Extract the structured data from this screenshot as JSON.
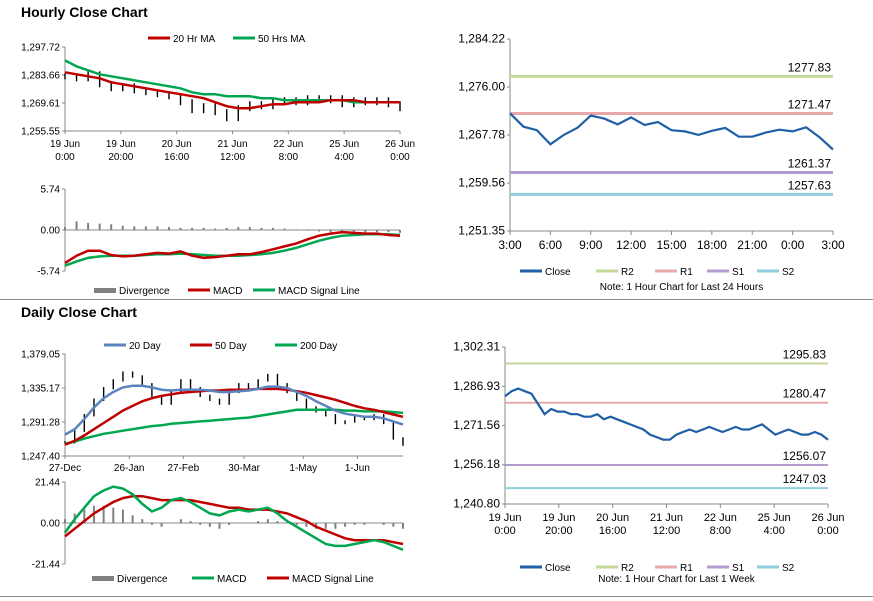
{
  "sections": {
    "hourly_title": "Hourly Close Chart",
    "daily_title": "Daily Close Chart"
  },
  "colors": {
    "price": "#000000",
    "ma_red": "#c00000",
    "ma_green": "#00a650",
    "ma_blue": "#5b84bf",
    "close": "#1f5fa6",
    "r2": "#c4d89b",
    "r1": "#e6a8a8",
    "s1": "#b29ccf",
    "s2": "#92cddc",
    "divergence": "#808080",
    "axis": "#888888",
    "grid_text": "#000000"
  },
  "chart_data": [
    {
      "id": "hourly_price",
      "type": "line",
      "title": "",
      "legend": [
        "20 Hr MA",
        "50 Hrs MA"
      ],
      "y_ticks": [
        "1,297.72",
        "1,283.66",
        "1,269.61",
        "1,255.55"
      ],
      "ylim": [
        1255.55,
        1297.72
      ],
      "x_tick_labels": [
        [
          "19 Jun",
          "0:00"
        ],
        [
          "19 Jun",
          "20:00"
        ],
        [
          "20 Jun",
          "16:00"
        ],
        [
          "21 Jun",
          "12:00"
        ],
        [
          "22 Jun",
          "8:00"
        ],
        [
          "25 Jun",
          "4:00"
        ],
        [
          "26 Jun",
          "0:00"
        ]
      ],
      "series": [
        {
          "name": "Close",
          "values": [
            1283,
            1282,
            1284,
            1279,
            1277,
            1278,
            1276,
            1275,
            1274,
            1273,
            1270,
            1266,
            1268,
            1265,
            1262,
            1267,
            1269,
            1268,
            1270,
            1271,
            1270,
            1272,
            1271,
            1272,
            1269,
            1271,
            1270,
            1271,
            1269,
            1267
          ]
        },
        {
          "name": "20 Hr MA",
          "values": [
            1285,
            1284,
            1283,
            1282,
            1280,
            1279,
            1278,
            1277,
            1276,
            1275,
            1274,
            1273,
            1272,
            1270,
            1268,
            1267,
            1267,
            1268,
            1269,
            1269,
            1270,
            1270,
            1270,
            1271,
            1271,
            1271,
            1270,
            1270,
            1270,
            1270
          ]
        },
        {
          "name": "50 Hrs MA",
          "values": [
            1291,
            1288,
            1286,
            1284,
            1283,
            1282,
            1281,
            1280,
            1279,
            1278,
            1277,
            1275,
            1274,
            1274,
            1273,
            1273,
            1273,
            1272,
            1272,
            1271,
            1271,
            1271,
            1271,
            1271,
            1271,
            1270,
            1270,
            1270,
            1270,
            1270
          ]
        }
      ]
    },
    {
      "id": "hourly_macd",
      "type": "line",
      "legend": [
        "Divergence",
        "MACD",
        "MACD Signal Line"
      ],
      "y_ticks": [
        "5.74",
        "0.00",
        "-5.74"
      ],
      "ylim": [
        -5.74,
        5.74
      ],
      "series": [
        {
          "name": "Divergence",
          "values": [
            0.4,
            1.2,
            1.0,
            0.9,
            0.8,
            0.6,
            0.5,
            0.5,
            0.5,
            0.4,
            0.3,
            0.3,
            0.3,
            0.2,
            0.3,
            0.4,
            0.4,
            0.3,
            0.3,
            0.2,
            0.1,
            -0.1,
            -0.2,
            -0.3,
            -0.3,
            -0.3,
            -0.4,
            -0.3,
            -0.3,
            -0.4
          ]
        },
        {
          "name": "MACD",
          "values": [
            -4.6,
            -3.6,
            -2.9,
            -2.9,
            -3.5,
            -3.7,
            -3.6,
            -3.4,
            -3.2,
            -3.3,
            -3.0,
            -3.6,
            -3.9,
            -3.8,
            -3.6,
            -3.4,
            -3.4,
            -3.1,
            -2.7,
            -2.3,
            -1.9,
            -1.3,
            -0.8,
            -0.5,
            -0.3,
            -0.4,
            -0.5,
            -0.5,
            -0.7,
            -0.8
          ]
        },
        {
          "name": "MACD Signal Line",
          "values": [
            -5.0,
            -4.4,
            -3.9,
            -3.7,
            -3.6,
            -3.6,
            -3.6,
            -3.5,
            -3.4,
            -3.4,
            -3.3,
            -3.4,
            -3.5,
            -3.6,
            -3.6,
            -3.6,
            -3.5,
            -3.4,
            -3.2,
            -2.9,
            -2.5,
            -2.0,
            -1.5,
            -1.1,
            -0.8,
            -0.7,
            -0.6,
            -0.6,
            -0.6,
            -0.7
          ]
        }
      ]
    },
    {
      "id": "hourly_levels",
      "type": "line",
      "legend": [
        "Close",
        "R2",
        "R1",
        "S1",
        "S2"
      ],
      "y_ticks": [
        "1,284.22",
        "1,276.00",
        "1,267.78",
        "1,259.56",
        "1,251.35"
      ],
      "ylim": [
        1251.35,
        1284.22
      ],
      "x_ticks": [
        "3:00",
        "6:00",
        "9:00",
        "12:00",
        "15:00",
        "18:00",
        "21:00",
        "0:00",
        "3:00"
      ],
      "note": "Note: 1 Hour Chart for Last 24 Hours",
      "levels": [
        {
          "name": "R2",
          "value": 1277.83,
          "label": "1277.83"
        },
        {
          "name": "R1",
          "value": 1271.47,
          "label": "1271.47"
        },
        {
          "name": "S1",
          "value": 1261.37,
          "label": "1261.37"
        },
        {
          "name": "S2",
          "value": 1257.63,
          "label": "1257.63"
        }
      ],
      "series": [
        {
          "name": "Close",
          "values": [
            1271.5,
            1269.2,
            1268.6,
            1266.2,
            1267.8,
            1269.0,
            1271.1,
            1270.6,
            1269.6,
            1270.8,
            1269.5,
            1270.0,
            1268.6,
            1268.4,
            1267.8,
            1268.5,
            1269.0,
            1267.5,
            1267.5,
            1268.2,
            1268.7,
            1268.4,
            1269.1,
            1267.4,
            1265.3
          ]
        }
      ]
    },
    {
      "id": "daily_price",
      "type": "line",
      "legend": [
        "20 Day",
        "50 Day",
        "200 Day"
      ],
      "y_ticks": [
        "1,379.05",
        "1,335.17",
        "1,291.28",
        "1,247.40"
      ],
      "ylim": [
        1247.4,
        1379.05
      ],
      "x_ticks": [
        "27-Dec",
        "26-Jan",
        "27-Feb",
        "30-Mar",
        "1-May",
        "1-Jun"
      ],
      "series": [
        {
          "name": "Close",
          "values": [
            1265,
            1280,
            1300,
            1320,
            1335,
            1345,
            1355,
            1350,
            1340,
            1325,
            1315,
            1330,
            1345,
            1335,
            1325,
            1320,
            1315,
            1330,
            1340,
            1335,
            1345,
            1352,
            1340,
            1330,
            1320,
            1310,
            1305,
            1300,
            1290,
            1292,
            1298,
            1295,
            1300,
            1290,
            1270,
            1262
          ]
        },
        {
          "name": "20 Day",
          "values": [
            1275,
            1282,
            1295,
            1310,
            1322,
            1330,
            1336,
            1338,
            1338,
            1336,
            1333,
            1332,
            1333,
            1333,
            1333,
            1332,
            1330,
            1330,
            1331,
            1332,
            1334,
            1337,
            1337,
            1335,
            1330,
            1325,
            1318,
            1312,
            1306,
            1302,
            1300,
            1298,
            1298,
            1296,
            1292,
            1288
          ]
        },
        {
          "name": "50 Day",
          "values": [
            1262,
            1267,
            1274,
            1282,
            1290,
            1298,
            1306,
            1312,
            1318,
            1322,
            1325,
            1327,
            1329,
            1330,
            1331,
            1332,
            1332,
            1333,
            1333,
            1333,
            1334,
            1334,
            1334,
            1333,
            1331,
            1329,
            1326,
            1323,
            1320,
            1316,
            1312,
            1309,
            1307,
            1304,
            1301,
            1298
          ]
        },
        {
          "name": "200 Day",
          "values": [
            1263,
            1266,
            1270,
            1273,
            1276,
            1278,
            1280,
            1282,
            1284,
            1286,
            1287,
            1289,
            1290,
            1291,
            1292,
            1293,
            1294,
            1295,
            1296,
            1297,
            1299,
            1301,
            1303,
            1305,
            1307,
            1307,
            1307,
            1307,
            1307,
            1306,
            1306,
            1305,
            1305,
            1305,
            1304,
            1303
          ]
        }
      ]
    },
    {
      "id": "daily_macd",
      "type": "line",
      "legend": [
        "Divergence",
        "MACD",
        "MACD Signal Line"
      ],
      "y_ticks": [
        "21.44",
        "0.00",
        "-21.44"
      ],
      "ylim": [
        -21.44,
        21.44
      ],
      "series": [
        {
          "name": "Divergence",
          "values": [
            2,
            5,
            7,
            9,
            9,
            8,
            7,
            4,
            2,
            -1,
            -2,
            0,
            2,
            1,
            -1,
            -2,
            -3,
            -1,
            0,
            0,
            1,
            2,
            1,
            0,
            -1,
            -2,
            -3,
            -3,
            -3,
            -2,
            -1,
            -1,
            0,
            -1,
            -2,
            -3
          ]
        },
        {
          "name": "MACD",
          "values": [
            -5,
            2,
            8,
            14,
            17,
            19,
            18,
            15,
            10,
            6,
            8,
            12,
            13,
            11,
            8,
            5,
            4,
            6,
            7,
            6,
            7,
            8,
            5,
            1,
            -2,
            -5,
            -8,
            -11,
            -12,
            -12,
            -11,
            -10,
            -9,
            -10,
            -12,
            -14
          ]
        },
        {
          "name": "MACD Signal Line",
          "values": [
            -7,
            -3,
            1,
            5,
            8,
            11,
            13,
            14,
            14,
            13,
            12,
            12,
            12,
            12,
            11,
            10,
            9,
            8,
            8,
            7,
            7,
            7,
            6,
            5,
            3,
            1,
            -2,
            -4,
            -6,
            -8,
            -9,
            -9,
            -9,
            -9,
            -10,
            -11
          ]
        }
      ]
    },
    {
      "id": "daily_levels",
      "type": "line",
      "legend": [
        "Close",
        "R2",
        "R1",
        "S1",
        "S2"
      ],
      "y_ticks": [
        "1,302.31",
        "1,286.93",
        "1,271.56",
        "1,256.18",
        "1,240.80"
      ],
      "ylim": [
        1240.8,
        1302.31
      ],
      "x_tick_labels": [
        [
          "19 Jun",
          "0:00"
        ],
        [
          "19 Jun",
          "20:00"
        ],
        [
          "20 Jun",
          "16:00"
        ],
        [
          "21 Jun",
          "12:00"
        ],
        [
          "22 Jun",
          "8:00"
        ],
        [
          "25 Jun",
          "4:00"
        ],
        [
          "26 Jun",
          "0:00"
        ]
      ],
      "note": "Note: 1 Hour Chart for Last 1 Week",
      "levels": [
        {
          "name": "R2",
          "value": 1295.83,
          "label": "1295.83"
        },
        {
          "name": "R1",
          "value": 1280.47,
          "label": "1280.47"
        },
        {
          "name": "S1",
          "value": 1256.07,
          "label": "1256.07"
        },
        {
          "name": "S2",
          "value": 1247.03,
          "label": "1247.03"
        }
      ],
      "series": [
        {
          "name": "Close",
          "values": [
            1283,
            1285,
            1286,
            1285,
            1284,
            1280,
            1276,
            1278,
            1277,
            1277,
            1276,
            1276,
            1275,
            1275,
            1276,
            1274,
            1275,
            1274,
            1273,
            1272,
            1271,
            1270,
            1268,
            1267,
            1266,
            1266,
            1268,
            1269,
            1270,
            1269,
            1270,
            1271,
            1270,
            1269,
            1270,
            1271,
            1270,
            1270,
            1271,
            1272,
            1270,
            1268,
            1269,
            1270,
            1269,
            1268,
            1268,
            1269,
            1268,
            1266
          ]
        }
      ]
    }
  ]
}
